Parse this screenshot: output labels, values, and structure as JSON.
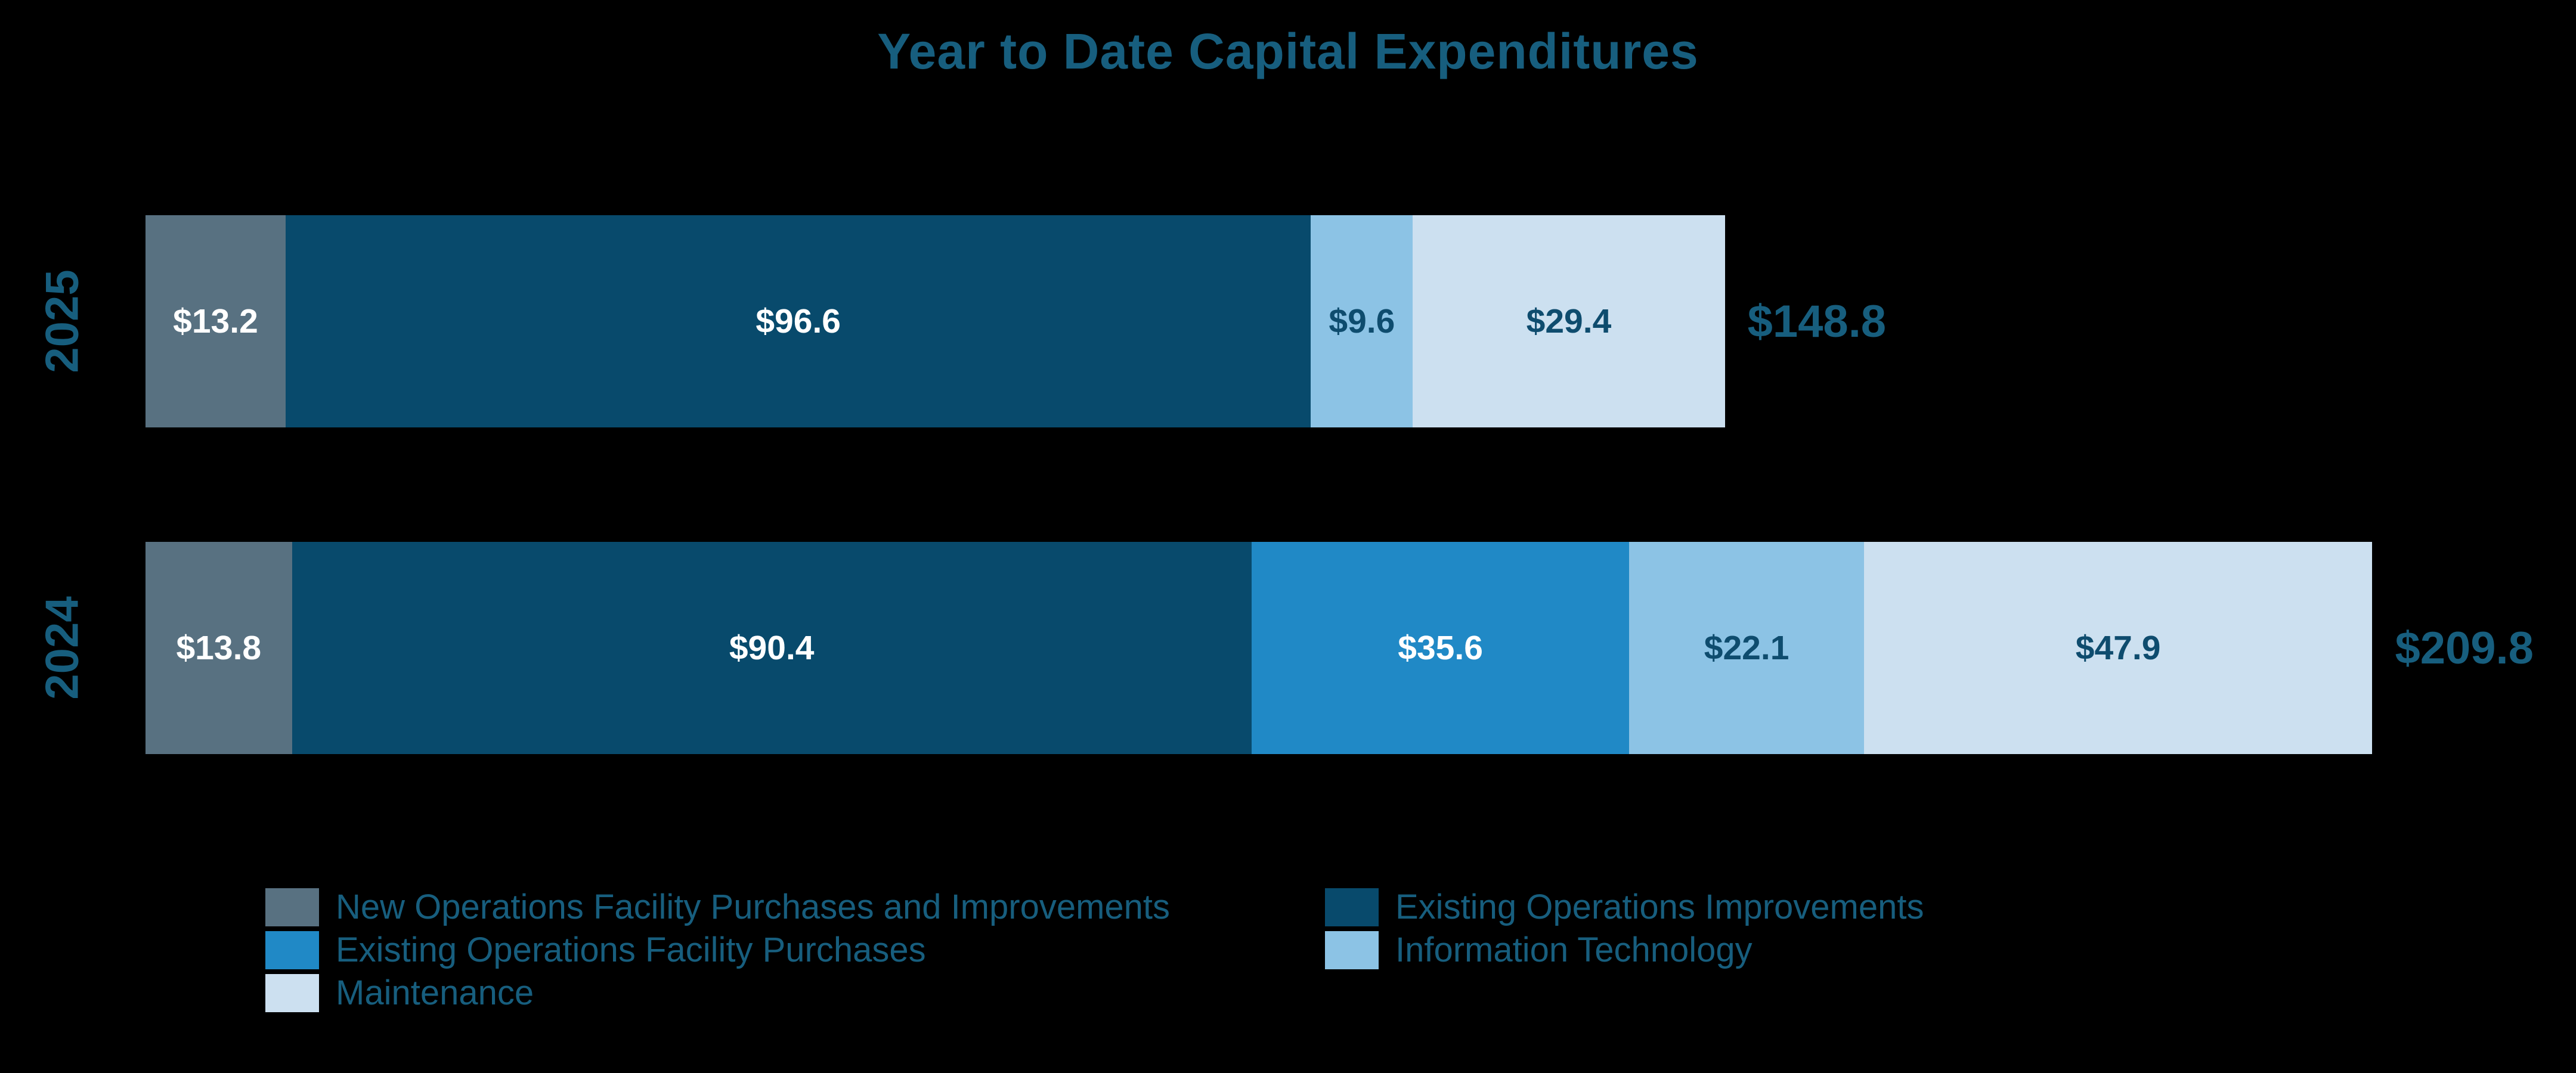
{
  "title": "Year to Date Capital Expenditures",
  "colors": {
    "background": "#000000",
    "heading_text": "#175E7E",
    "dark_value_text": "#0E4C6E",
    "light_value_text": "#FFFFFF"
  },
  "chart_data": {
    "type": "bar",
    "orientation": "horizontal",
    "stacked": true,
    "title": "Year to Date Capital Expenditures",
    "value_prefix": "$",
    "categories": [
      "2025",
      "2024"
    ],
    "series": [
      {
        "key": "new_ops",
        "name": "New Operations Facility Purchases and Improvements",
        "color": "#587181",
        "label_color": "#FFFFFF",
        "values": [
          13.2,
          13.8
        ]
      },
      {
        "key": "existing_improvements",
        "name": "Existing Operations Improvements",
        "color": "#084A6C",
        "label_color": "#FFFFFF",
        "values": [
          96.6,
          90.4
        ]
      },
      {
        "key": "existing_purchases",
        "name": "Existing Operations Facility Purchases",
        "color": "#2089C6",
        "label_color": "#FFFFFF",
        "values": [
          0,
          35.6
        ]
      },
      {
        "key": "it",
        "name": "Information Technology",
        "color": "#8CC3E5",
        "label_color": "#0E4C6E",
        "values": [
          9.6,
          22.1
        ]
      },
      {
        "key": "maintenance",
        "name": "Maintenance",
        "color": "#CCE0F0",
        "label_color": "#0E4C6E",
        "values": [
          29.4,
          47.9
        ]
      }
    ],
    "totals": [
      148.8,
      209.8
    ],
    "legend_position": "bottom",
    "legend_columns": [
      [
        "new_ops",
        "existing_purchases",
        "maintenance"
      ],
      [
        "existing_improvements",
        "it"
      ]
    ],
    "grid": false,
    "axes_visible": false
  }
}
